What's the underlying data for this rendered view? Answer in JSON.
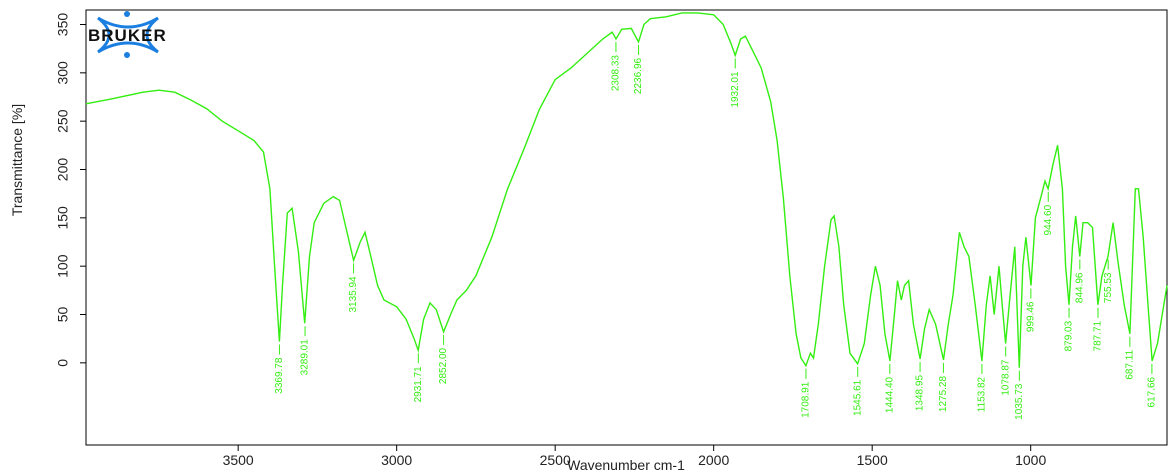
{
  "colors": {
    "spectrum": "#33ee11",
    "axis": "#000000",
    "logo_blue": "#1a7fe0",
    "logo_text": "#111111"
  },
  "logo": {
    "text": "BRUKER",
    "icon": "bruker-logo-icon"
  },
  "chart_data": {
    "type": "line",
    "xlabel": "Wavenumber cm-1",
    "ylabel": "Transmittance [%]",
    "xlim": [
      3980,
      570
    ],
    "ylim": [
      -85,
      365
    ],
    "x_reversed": true,
    "grid": false,
    "legend": "none",
    "xticks": [
      3500,
      3000,
      2500,
      2000,
      1500,
      1000
    ],
    "yticks": [
      0,
      50,
      100,
      150,
      200,
      250,
      300,
      350
    ],
    "series": [
      {
        "values": [
          [
            3980,
            268
          ],
          [
            3900,
            273
          ],
          [
            3800,
            280
          ],
          [
            3750,
            282
          ],
          [
            3700,
            280
          ],
          [
            3650,
            272
          ],
          [
            3600,
            263
          ],
          [
            3550,
            250
          ],
          [
            3500,
            240
          ],
          [
            3450,
            230
          ],
          [
            3420,
            218
          ],
          [
            3400,
            180
          ],
          [
            3385,
            100
          ],
          [
            3370,
            22
          ],
          [
            3360,
            80
          ],
          [
            3345,
            155
          ],
          [
            3330,
            160
          ],
          [
            3310,
            115
          ],
          [
            3290,
            41
          ],
          [
            3275,
            110
          ],
          [
            3260,
            145
          ],
          [
            3230,
            165
          ],
          [
            3200,
            172
          ],
          [
            3180,
            168
          ],
          [
            3160,
            140
          ],
          [
            3136,
            106
          ],
          [
            3115,
            125
          ],
          [
            3100,
            135
          ],
          [
            3085,
            115
          ],
          [
            3060,
            80
          ],
          [
            3040,
            65
          ],
          [
            3000,
            58
          ],
          [
            2970,
            45
          ],
          [
            2945,
            25
          ],
          [
            2932,
            13
          ],
          [
            2915,
            45
          ],
          [
            2895,
            62
          ],
          [
            2875,
            55
          ],
          [
            2852,
            32
          ],
          [
            2830,
            50
          ],
          [
            2810,
            65
          ],
          [
            2780,
            75
          ],
          [
            2750,
            90
          ],
          [
            2700,
            130
          ],
          [
            2650,
            180
          ],
          [
            2600,
            220
          ],
          [
            2550,
            262
          ],
          [
            2500,
            293
          ],
          [
            2450,
            305
          ],
          [
            2400,
            320
          ],
          [
            2350,
            335
          ],
          [
            2320,
            342
          ],
          [
            2308,
            335
          ],
          [
            2290,
            345
          ],
          [
            2260,
            346
          ],
          [
            2237,
            332
          ],
          [
            2220,
            350
          ],
          [
            2200,
            356
          ],
          [
            2150,
            358
          ],
          [
            2100,
            362
          ],
          [
            2050,
            362
          ],
          [
            2000,
            360
          ],
          [
            1970,
            350
          ],
          [
            1945,
            330
          ],
          [
            1932,
            318
          ],
          [
            1915,
            335
          ],
          [
            1900,
            338
          ],
          [
            1880,
            325
          ],
          [
            1850,
            305
          ],
          [
            1820,
            270
          ],
          [
            1800,
            230
          ],
          [
            1780,
            170
          ],
          [
            1760,
            90
          ],
          [
            1740,
            30
          ],
          [
            1725,
            5
          ],
          [
            1709,
            -3
          ],
          [
            1695,
            10
          ],
          [
            1685,
            5
          ],
          [
            1670,
            40
          ],
          [
            1650,
            100
          ],
          [
            1630,
            148
          ],
          [
            1620,
            152
          ],
          [
            1605,
            120
          ],
          [
            1590,
            60
          ],
          [
            1570,
            10
          ],
          [
            1546,
            -1
          ],
          [
            1525,
            20
          ],
          [
            1505,
            70
          ],
          [
            1490,
            100
          ],
          [
            1475,
            80
          ],
          [
            1460,
            30
          ],
          [
            1444,
            2
          ],
          [
            1430,
            50
          ],
          [
            1420,
            85
          ],
          [
            1408,
            65
          ],
          [
            1398,
            80
          ],
          [
            1385,
            85
          ],
          [
            1370,
            40
          ],
          [
            1349,
            4
          ],
          [
            1335,
            35
          ],
          [
            1320,
            55
          ],
          [
            1300,
            40
          ],
          [
            1275,
            3
          ],
          [
            1260,
            40
          ],
          [
            1245,
            70
          ],
          [
            1225,
            135
          ],
          [
            1210,
            120
          ],
          [
            1195,
            110
          ],
          [
            1175,
            60
          ],
          [
            1154,
            2
          ],
          [
            1140,
            60
          ],
          [
            1128,
            90
          ],
          [
            1115,
            50
          ],
          [
            1100,
            100
          ],
          [
            1090,
            60
          ],
          [
            1079,
            20
          ],
          [
            1065,
            70
          ],
          [
            1050,
            120
          ],
          [
            1036,
            -5
          ],
          [
            1025,
            100
          ],
          [
            1015,
            130
          ],
          [
            999,
            80
          ],
          [
            985,
            150
          ],
          [
            965,
            175
          ],
          [
            955,
            188
          ],
          [
            945,
            180
          ],
          [
            930,
            205
          ],
          [
            915,
            225
          ],
          [
            900,
            180
          ],
          [
            890,
            100
          ],
          [
            879,
            60
          ],
          [
            868,
            120
          ],
          [
            858,
            152
          ],
          [
            845,
            110
          ],
          [
            835,
            145
          ],
          [
            820,
            145
          ],
          [
            805,
            140
          ],
          [
            788,
            60
          ],
          [
            775,
            90
          ],
          [
            756,
            110
          ],
          [
            740,
            145
          ],
          [
            725,
            105
          ],
          [
            705,
            60
          ],
          [
            687,
            30
          ],
          [
            670,
            180
          ],
          [
            660,
            180
          ],
          [
            645,
            130
          ],
          [
            630,
            60
          ],
          [
            617,
            2
          ],
          [
            600,
            20
          ],
          [
            570,
            80
          ]
        ]
      }
    ],
    "peaks": [
      {
        "x": 3369.78,
        "y": 22,
        "label": "3369.78"
      },
      {
        "x": 3289.01,
        "y": 41,
        "label": "3289.01"
      },
      {
        "x": 3135.94,
        "y": 106,
        "label": "3135.94"
      },
      {
        "x": 2931.71,
        "y": 13,
        "label": "2931.71"
      },
      {
        "x": 2852.0,
        "y": 32,
        "label": "2852.00"
      },
      {
        "x": 2308.33,
        "y": 335,
        "label": "2308.33"
      },
      {
        "x": 2236.96,
        "y": 332,
        "label": "2236.96"
      },
      {
        "x": 1932.01,
        "y": 318,
        "label": "1932.01"
      },
      {
        "x": 1708.91,
        "y": -3,
        "label": "1708.91"
      },
      {
        "x": 1545.61,
        "y": -1,
        "label": "1545.61"
      },
      {
        "x": 1444.4,
        "y": 2,
        "label": "1444.40"
      },
      {
        "x": 1348.95,
        "y": 4,
        "label": "1348.95"
      },
      {
        "x": 1275.28,
        "y": 3,
        "label": "1275.28"
      },
      {
        "x": 1153.82,
        "y": 2,
        "label": "1153.82"
      },
      {
        "x": 1078.87,
        "y": 20,
        "label": "1078.87"
      },
      {
        "x": 1035.73,
        "y": -5,
        "label": "1035.73"
      },
      {
        "x": 999.46,
        "y": 80,
        "label": "999.46"
      },
      {
        "x": 944.6,
        "y": 180,
        "label": "944.60"
      },
      {
        "x": 879.03,
        "y": 60,
        "label": "879.03"
      },
      {
        "x": 844.96,
        "y": 110,
        "label": "844.96"
      },
      {
        "x": 787.71,
        "y": 60,
        "label": "787.71"
      },
      {
        "x": 755.53,
        "y": 110,
        "label": "755.53"
      },
      {
        "x": 687.11,
        "y": 30,
        "label": "687.11"
      },
      {
        "x": 617.66,
        "y": 2,
        "label": "617.66"
      }
    ]
  }
}
